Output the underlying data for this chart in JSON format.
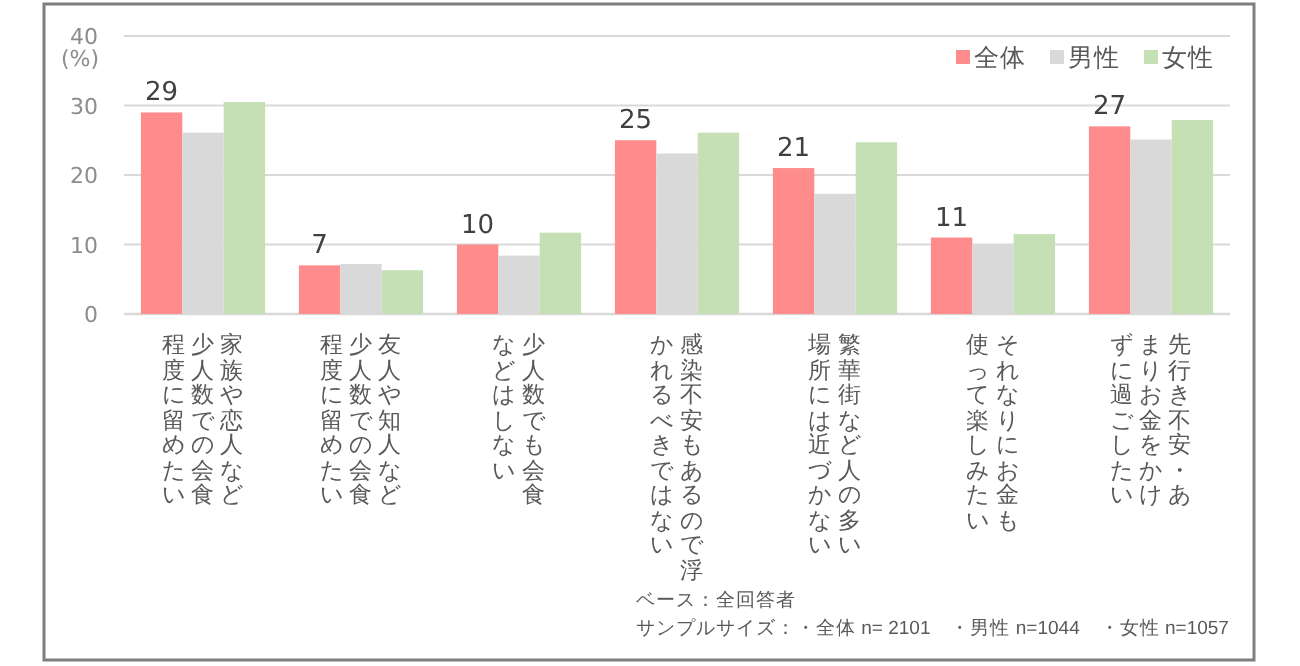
{
  "chart_data": {
    "type": "bar",
    "ylabel": "(%)",
    "categories": [
      "家族や恋人など少人数での会食程度に留めたい",
      "友人や知人など少人数での会食程度に留めたい",
      "少人数でも会食などはしない",
      "感染不安もあるので浮かれるべきではない",
      "繁華街など人の多い場所には近づかない",
      "それなりにお金も使って楽しみたい",
      "先行き不安・あまりお金をかけずに過ごしたい"
    ],
    "series": [
      {
        "name": "全体",
        "color": "#ff8c8c",
        "values": [
          29,
          7,
          10,
          25,
          21,
          11,
          27
        ],
        "value_labels": [
          "29",
          "7",
          "10",
          "25",
          "21",
          "11",
          "27"
        ]
      },
      {
        "name": "男性",
        "color": "#d9d9d9",
        "values": [
          26.1,
          7.2,
          8.4,
          23.1,
          17.3,
          10.0,
          25.1
        ]
      },
      {
        "name": "女性",
        "color": "#c5e0b4",
        "values": [
          30.5,
          6.3,
          11.7,
          26.1,
          24.7,
          11.5,
          27.9
        ]
      }
    ],
    "ylim": [
      0,
      40
    ],
    "yticks": [
      0,
      10,
      20,
      30,
      40
    ],
    "grid": "y",
    "legend": "top right",
    "annotations": [
      "ベース：全回答者",
      "サンプルサイズ：・全体 n= 2101　・男性 n=1044　・女性 n=1057"
    ]
  }
}
